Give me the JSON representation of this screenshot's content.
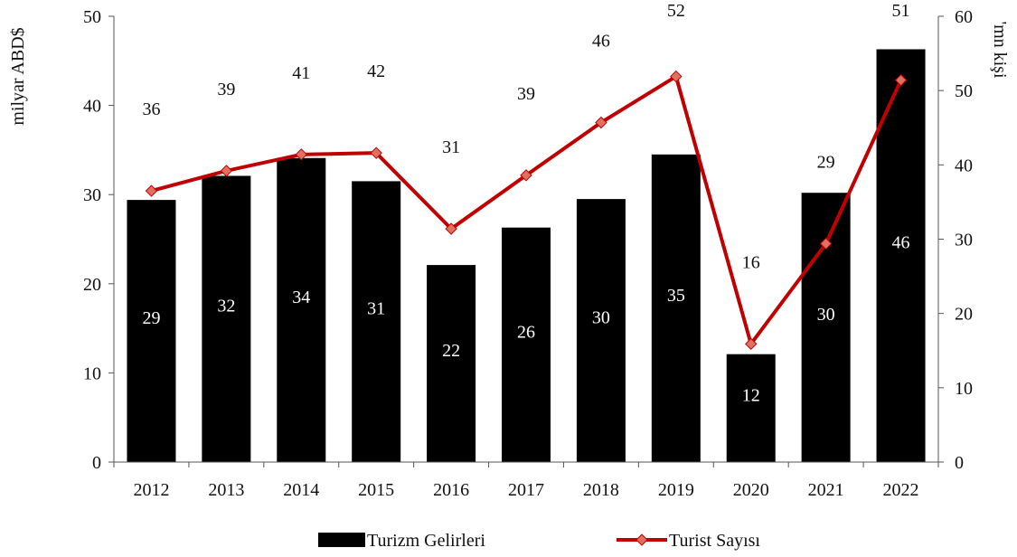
{
  "chart_data": {
    "type": "bar",
    "categories": [
      "2012",
      "2013",
      "2014",
      "2015",
      "2016",
      "2017",
      "2018",
      "2019",
      "2020",
      "2021",
      "2022"
    ],
    "series": [
      {
        "name": "Turizm Gelirleri",
        "type": "bar",
        "axis": "left",
        "color": "#000000",
        "values": [
          29.4,
          32.1,
          34.1,
          31.5,
          22.1,
          26.3,
          29.5,
          34.5,
          12.1,
          30.2,
          46.3
        ],
        "labels": [
          "29",
          "32",
          "34",
          "31",
          "22",
          "26",
          "30",
          "35",
          "12",
          "30",
          "46"
        ]
      },
      {
        "name": "Turist Sayısı",
        "type": "line",
        "axis": "right",
        "color": "#c00000",
        "marker_color": "#e07060",
        "values": [
          36.5,
          39.2,
          41.4,
          41.6,
          31.4,
          38.6,
          45.7,
          51.9,
          15.9,
          29.4,
          51.4
        ],
        "labels": [
          "36",
          "39",
          "41",
          "42",
          "31",
          "39",
          "46",
          "52",
          "16",
          "29",
          "51"
        ]
      }
    ],
    "left_axis": {
      "label": "milyar ABD$",
      "ylim": [
        0,
        50
      ],
      "ticks": [
        "0",
        "10",
        "20",
        "30",
        "40",
        "50"
      ]
    },
    "right_axis": {
      "label": "'mn kişi",
      "ylim": [
        0,
        60
      ],
      "ticks": [
        "0",
        "10",
        "20",
        "30",
        "40",
        "50",
        "60"
      ]
    },
    "grid": false,
    "legend": "bottom"
  }
}
